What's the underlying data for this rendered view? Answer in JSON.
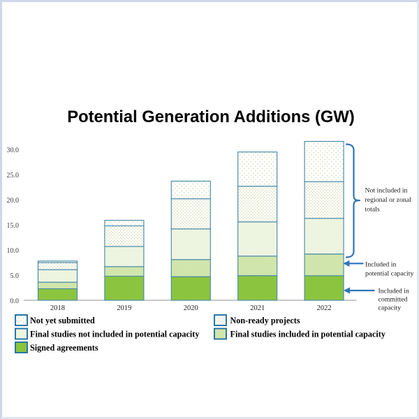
{
  "title": "Potential Generation Additions (GW)",
  "colors": {
    "solid_green": "#8bc53f",
    "light_green_fill": "#c7e19b",
    "pale_green_fill": "#e7f0d6",
    "dot_olive": "#c9d29c",
    "bar_border": "#4a8ba8",
    "legend_border": "#2270a3",
    "annotation_blue": "#2e75b6",
    "axis_line": "#8f8f8f",
    "page_border": "#ccd7eb"
  },
  "chart_data": {
    "type": "bar",
    "stacked": true,
    "title": "Potential Generation Additions (GW)",
    "xlabel": "",
    "ylabel": "",
    "categories": [
      "2018",
      "2019",
      "2020",
      "2021",
      "2022"
    ],
    "series": [
      {
        "name": "Signed agreements",
        "swatch": "solid-green",
        "values": [
          2.3,
          4.8,
          4.7,
          4.9,
          4.9
        ]
      },
      {
        "name": "Final studies included in potential capacity",
        "swatch": "dots-light-green",
        "values": [
          1.3,
          1.9,
          3.4,
          3.9,
          4.3
        ]
      },
      {
        "name": "Final studies not included in potential capacity",
        "swatch": "dots-pale-green",
        "values": [
          2.5,
          4.0,
          6.1,
          6.8,
          7.1
        ]
      },
      {
        "name": "Non-ready projects",
        "swatch": "dots-white-dense",
        "values": [
          1.4,
          4.1,
          6.0,
          7.1,
          7.3
        ]
      },
      {
        "name": "Not yet submitted",
        "swatch": "dots-white-sparse",
        "values": [
          0.3,
          1.1,
          3.5,
          6.8,
          8.0
        ]
      }
    ],
    "totals": [
      7.8,
      15.9,
      23.7,
      29.5,
      31.6
    ],
    "ylim": [
      0,
      32.5
    ],
    "yticks": [
      "0.0",
      "5.0",
      "10.0",
      "15.0",
      "20.0",
      "25.0",
      "30.0"
    ],
    "grid": false,
    "legend_position": "bottom"
  },
  "legend": {
    "columns": [
      [
        {
          "label": "Not yet submitted",
          "swatch": "dots-white-sparse"
        },
        {
          "label": "Final studies not included in potential capacity",
          "swatch": "dots-pale-green"
        },
        {
          "label": "Signed agreements",
          "swatch": "solid-green"
        }
      ],
      [
        {
          "label": "Non-ready projects",
          "swatch": "dots-white-dense"
        },
        {
          "label": "Final studies included in potential capacity",
          "swatch": "dots-light-green"
        }
      ]
    ]
  },
  "annotations": [
    {
      "kind": "brace",
      "lines": [
        "Not included in",
        "regional or zonal",
        "totals"
      ]
    },
    {
      "kind": "arrow",
      "lines": [
        "Included in",
        "potential capacity"
      ]
    },
    {
      "kind": "arrow",
      "lines": [
        "Included in",
        "committed",
        "capacity"
      ]
    }
  ]
}
